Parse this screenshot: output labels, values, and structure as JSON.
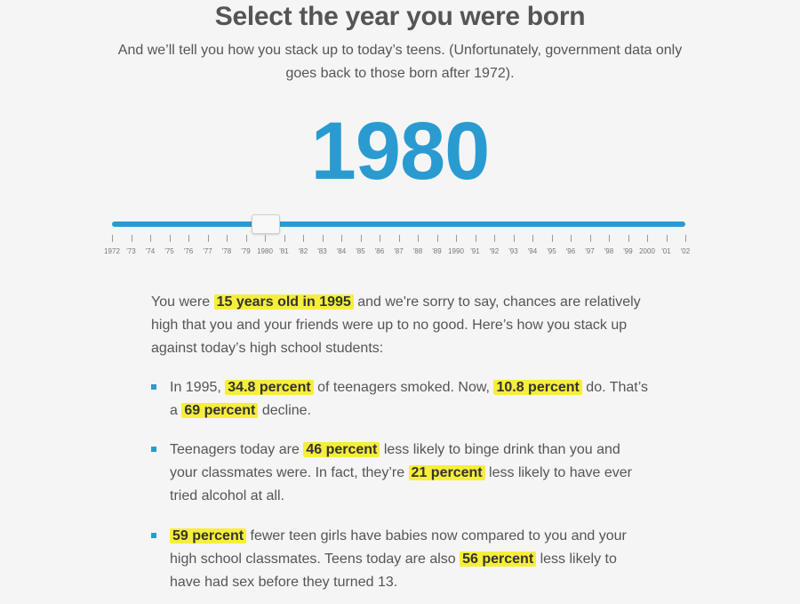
{
  "title": "Select the year you were born",
  "subtitle": "And we’ll tell you how you stack up to today’s teens. (Unfortunately, government data only goes back to those born after 1972).",
  "selected_year": "1980",
  "slider": {
    "min": 1972,
    "max": 2002,
    "value": 1980,
    "tick_labels": [
      "1972",
      "'73",
      "'74",
      "'75",
      "'76",
      "'77",
      "'78",
      "'79",
      "1980",
      "'81",
      "'82",
      "'83",
      "'84",
      "'85",
      "'86",
      "'87",
      "'88",
      "'89",
      "1990",
      "'91",
      "'92",
      "'93",
      "'94",
      "'95",
      "'96",
      "'97",
      "'98",
      "'99",
      "2000",
      "'01",
      "'02"
    ]
  },
  "intro": {
    "p1": "You were ",
    "h1": "15 years old in 1995",
    "p2": " and we're sorry to say, chances are relatively high that you and your friends were up to no good. Here’s how you stack up against today’s high school students:"
  },
  "bullets": [
    {
      "p1": "In 1995, ",
      "h1": "34.8 percent",
      "p2": " of teenagers smoked. Now, ",
      "h2": "10.8 percent",
      "p3": " do. That’s a ",
      "h3": "69 percent",
      "p4": " decline."
    },
    {
      "p1": "Teenagers today are ",
      "h1": "46 percent",
      "p2": " less likely to binge drink than you and your classmates were. In fact, they’re ",
      "h2": "21 percent",
      "p3": " less likely to have ever tried alcohol at all."
    },
    {
      "h1": "59 percent",
      "p1": " fewer teen girls have babies now compared to you and your high school classmates. Teens today are also ",
      "h2": "56 percent",
      "p2": " less likely to have had sex before they turned 13."
    }
  ],
  "colors": {
    "accent": "#2a9bd1",
    "highlight": "#f6ee3b"
  }
}
